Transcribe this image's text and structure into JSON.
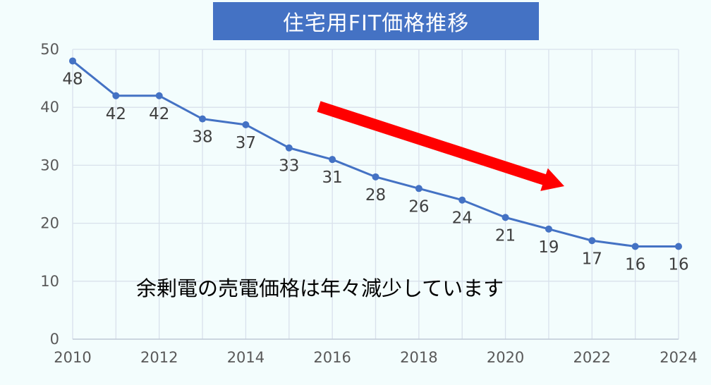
{
  "chart_data": {
    "type": "line",
    "title": "住宅用FIT価格推移",
    "x": [
      2010,
      2011,
      2012,
      2013,
      2014,
      2015,
      2016,
      2017,
      2018,
      2019,
      2020,
      2021,
      2022,
      2023,
      2024
    ],
    "values": [
      48,
      42,
      42,
      38,
      37,
      33,
      31,
      28,
      26,
      24,
      21,
      19,
      17,
      16,
      16
    ],
    "data_labels": [
      "48",
      "42",
      "42",
      "38",
      "37",
      "33",
      "31",
      "28",
      "26",
      "24",
      "21",
      "19",
      "17",
      "16",
      "16"
    ],
    "xticks": [
      "2010",
      "2012",
      "2014",
      "2016",
      "2018",
      "2020",
      "2022",
      "2024"
    ],
    "yticks": [
      "0",
      "10",
      "20",
      "30",
      "40",
      "50"
    ],
    "xlim": [
      2010,
      2024
    ],
    "ylim": [
      0,
      50
    ],
    "grid": true,
    "annotation": "余剰電の売電価格は年々減少しています",
    "colors": {
      "line": "#4472c4",
      "arrow": "#ff0000",
      "title_bg": "#4472c4",
      "background": "#f3fdfd",
      "grid": "#d9e1ec"
    }
  }
}
